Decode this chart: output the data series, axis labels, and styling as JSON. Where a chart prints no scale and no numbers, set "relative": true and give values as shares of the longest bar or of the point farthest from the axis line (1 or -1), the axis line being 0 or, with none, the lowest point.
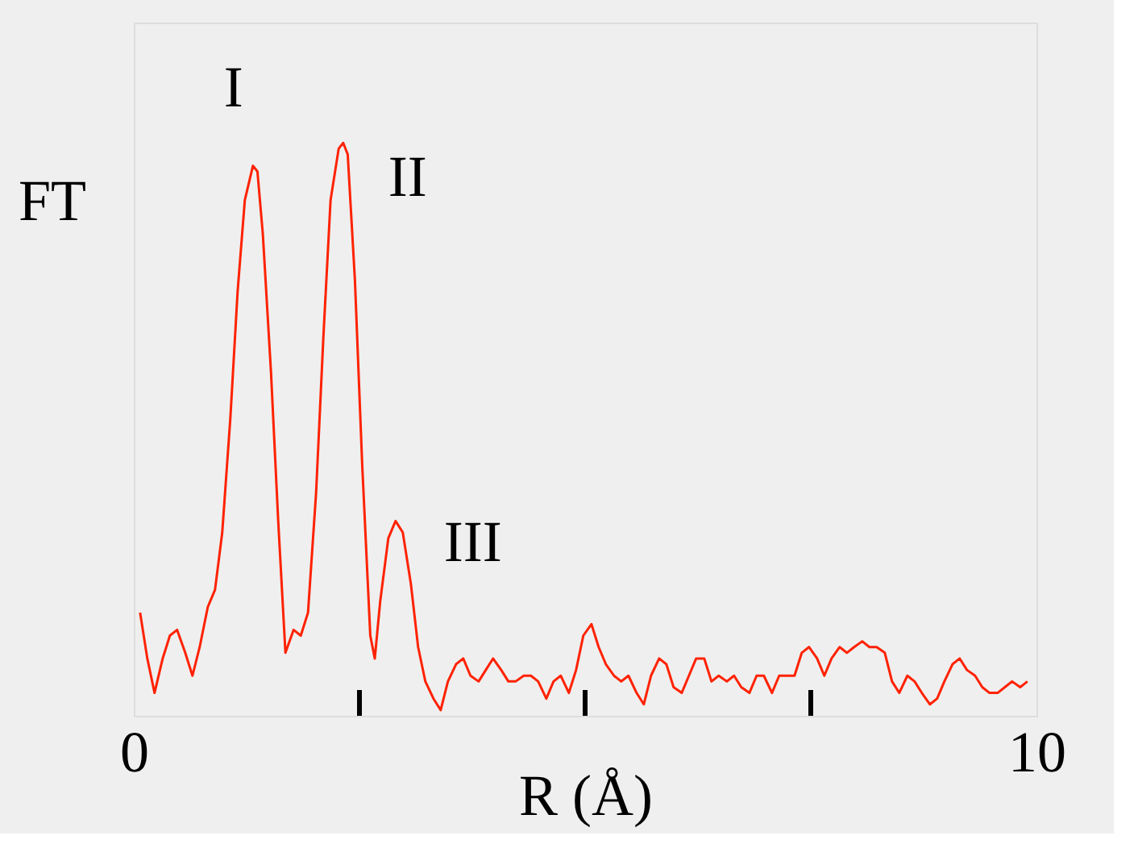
{
  "chart_data": {
    "type": "line",
    "relative": true,
    "xlabel": "R (Å)",
    "ylabel": "FT",
    "xlim": [
      0,
      10
    ],
    "xticks": [
      0,
      {
        "value": 2.5,
        "label": null
      },
      {
        "value": 5,
        "label": null
      },
      {
        "value": 7.5,
        "label": null
      },
      10
    ],
    "x": [
      0.07,
      0.15,
      0.23,
      0.32,
      0.4,
      0.48,
      0.57,
      0.65,
      0.73,
      0.82,
      0.9,
      0.98,
      1.07,
      1.15,
      1.23,
      1.32,
      1.37,
      1.43,
      1.52,
      1.6,
      1.68,
      1.77,
      1.85,
      1.93,
      2.02,
      2.1,
      2.18,
      2.27,
      2.32,
      2.37,
      2.45,
      2.53,
      2.62,
      2.67,
      2.73,
      2.82,
      2.9,
      2.98,
      3.07,
      3.15,
      3.23,
      3.32,
      3.4,
      3.48,
      3.57,
      3.65,
      3.73,
      3.82,
      3.9,
      3.98,
      4.07,
      4.15,
      4.23,
      4.32,
      4.4,
      4.48,
      4.57,
      4.65,
      4.73,
      4.82,
      4.9,
      4.98,
      5.07,
      5.15,
      5.23,
      5.32,
      5.4,
      5.48,
      5.57,
      5.65,
      5.73,
      5.82,
      5.9,
      5.98,
      6.07,
      6.15,
      6.23,
      6.32,
      6.4,
      6.48,
      6.57,
      6.65,
      6.73,
      6.82,
      6.9,
      6.98,
      7.07,
      7.15,
      7.23,
      7.32,
      7.4,
      7.48,
      7.57,
      7.65,
      7.73,
      7.82,
      7.9,
      7.98,
      8.07,
      8.15,
      8.23,
      8.32,
      8.4,
      8.48,
      8.57,
      8.65,
      8.73,
      8.82,
      8.9,
      8.98,
      9.07,
      9.15,
      9.23,
      9.32,
      9.4,
      9.48,
      9.57,
      9.65,
      9.73,
      9.82,
      9.9
    ],
    "series": [
      {
        "color": "#ff2200",
        "values": [
          0.18,
          0.1,
          0.04,
          0.1,
          0.14,
          0.15,
          0.11,
          0.07,
          0.12,
          0.19,
          0.22,
          0.32,
          0.52,
          0.74,
          0.9,
          0.96,
          0.95,
          0.84,
          0.6,
          0.34,
          0.11,
          0.15,
          0.14,
          0.18,
          0.39,
          0.66,
          0.9,
          0.99,
          1.0,
          0.98,
          0.76,
          0.44,
          0.14,
          0.1,
          0.2,
          0.31,
          0.34,
          0.32,
          0.23,
          0.12,
          0.06,
          0.03,
          0.01,
          0.06,
          0.09,
          0.1,
          0.07,
          0.06,
          0.08,
          0.1,
          0.08,
          0.06,
          0.06,
          0.07,
          0.07,
          0.06,
          0.03,
          0.06,
          0.07,
          0.04,
          0.08,
          0.14,
          0.16,
          0.12,
          0.09,
          0.07,
          0.06,
          0.07,
          0.04,
          0.02,
          0.07,
          0.1,
          0.09,
          0.05,
          0.04,
          0.07,
          0.1,
          0.1,
          0.06,
          0.07,
          0.06,
          0.07,
          0.05,
          0.04,
          0.07,
          0.07,
          0.04,
          0.07,
          0.07,
          0.07,
          0.11,
          0.12,
          0.1,
          0.07,
          0.1,
          0.12,
          0.11,
          0.12,
          0.13,
          0.12,
          0.12,
          0.11,
          0.06,
          0.04,
          0.07,
          0.06,
          0.04,
          0.02,
          0.03,
          0.06,
          0.09,
          0.1,
          0.08,
          0.07,
          0.05,
          0.04,
          0.04,
          0.05,
          0.06,
          0.05,
          0.06
        ]
      }
    ],
    "annotations": [
      {
        "text": "I",
        "x": 1.32,
        "y": 0.96
      },
      {
        "text": "II",
        "x": 2.32,
        "y": 1.0
      },
      {
        "text": "III",
        "x": 2.9,
        "y": 0.34
      }
    ]
  }
}
